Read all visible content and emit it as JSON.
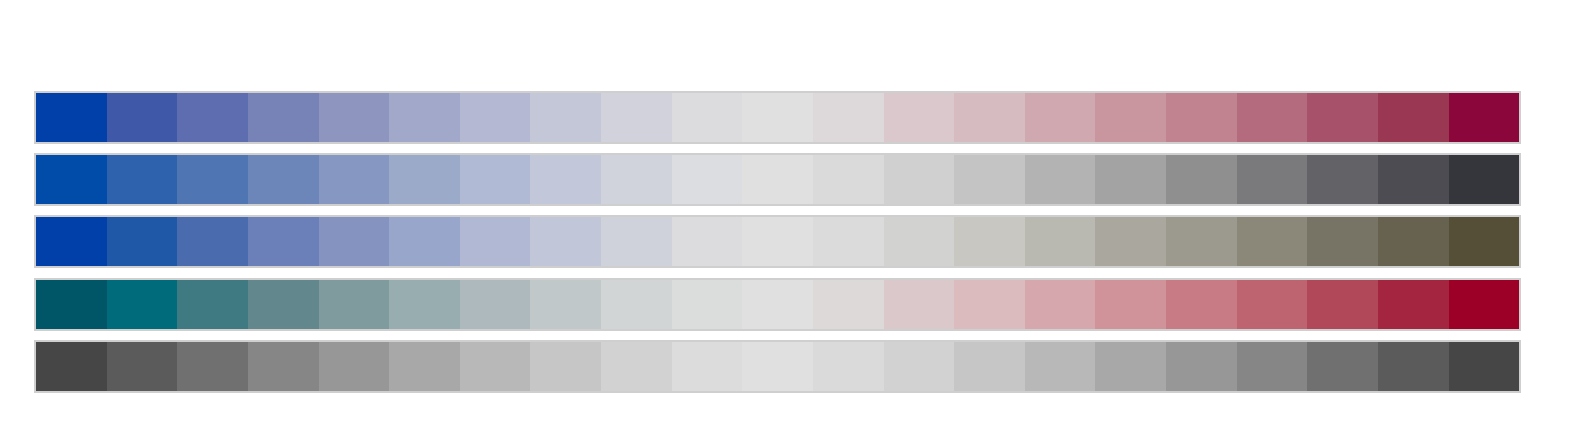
{
  "palettes": [
    {
      "name": "blue-to-crimson",
      "colors": [
        "#0040a8",
        "#3f58a8",
        "#5e6daf",
        "#7783b7",
        "#8e96c0",
        "#a2a8c9",
        "#b4b8d2",
        "#c4c7d8",
        "#d1d2dc",
        "#dcdcdf",
        "#e0e0e0",
        "#ddd9da",
        "#dac8cc",
        "#d6bbc0",
        "#d0a8b0",
        "#c9969f",
        "#c1838f",
        "#b46b7d",
        "#a7526a",
        "#9a3753",
        "#8b063b"
      ]
    },
    {
      "name": "blue-to-charcoal",
      "colors": [
        "#004ca8",
        "#2f62ac",
        "#4f75b2",
        "#6c86ba",
        "#8697c2",
        "#9caaca",
        "#b1bad4",
        "#c2c8da",
        "#d0d3dc",
        "#dcdde0",
        "#e0e0e0",
        "#dadada",
        "#d0d0d0",
        "#c4c4c4",
        "#b3b3b3",
        "#a3a3a3",
        "#8f8f8f",
        "#7a7a7c",
        "#636367",
        "#4c4c52",
        "#35353c"
      ]
    },
    {
      "name": "blue-to-olive",
      "colors": [
        "#0040a8",
        "#1e58a6",
        "#4a6caf",
        "#6b80b8",
        "#8593c0",
        "#99a6cb",
        "#b0b8d3",
        "#c1c7d9",
        "#d0d2db",
        "#dcdcdf",
        "#e0e0e0",
        "#dbdbdb",
        "#d2d2d0",
        "#c8c7c2",
        "#b9b8b1",
        "#aaa79f",
        "#9c998f",
        "#8b8779",
        "#787465",
        "#676250",
        "#564f38"
      ]
    },
    {
      "name": "teal-to-red",
      "colors": [
        "#005566",
        "#006b7a",
        "#3f7a82",
        "#62878c",
        "#7f9b9e",
        "#98adb0",
        "#adb9bc",
        "#c0c8c9",
        "#d1d5d6",
        "#dbdcdc",
        "#e0e0e0",
        "#ded9d9",
        "#dbc8cb",
        "#dbbbbe",
        "#d6a8ad",
        "#d0939a",
        "#c87b85",
        "#bd6470",
        "#b0485a",
        "#a32540",
        "#9c0026"
      ]
    },
    {
      "name": "grayscale",
      "colors": [
        "#464646",
        "#5b5b5b",
        "#707070",
        "#868686",
        "#979797",
        "#a8a8a8",
        "#b8b8b8",
        "#c6c6c6",
        "#d2d2d2",
        "#dcdcdc",
        "#e0e0e0",
        "#dadada",
        "#d2d2d2",
        "#c6c6c6",
        "#b8b8b8",
        "#a8a8a8",
        "#979797",
        "#868686",
        "#707070",
        "#5b5b5b",
        "#464646"
      ]
    }
  ]
}
